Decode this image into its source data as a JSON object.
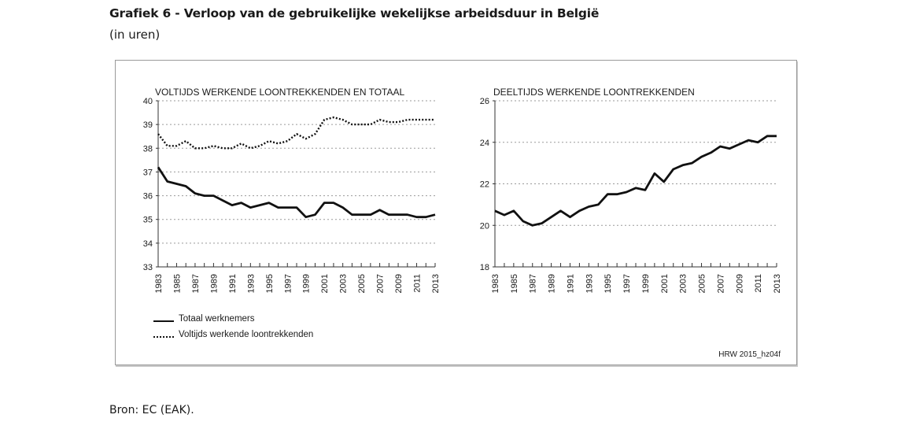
{
  "title": "Grafiek 6 - Verloop van de gebruikelijke wekelijkse arbeidsduur in België",
  "subtitle": "(in uren)",
  "source": "Bron: EC (EAK).",
  "code": "HRW 2015_hz04f",
  "colors": {
    "line": "#111111",
    "grid": "#9a9a9a",
    "frame": "#9a9a9a"
  },
  "chart_data": [
    {
      "type": "line",
      "title": "VOLTIJDS WERKENDE LOONTREKKENDEN EN TOTAAL",
      "x": [
        1983,
        1984,
        1985,
        1986,
        1987,
        1988,
        1989,
        1990,
        1991,
        1992,
        1993,
        1994,
        1995,
        1996,
        1997,
        1998,
        1999,
        2000,
        2001,
        2002,
        2003,
        2004,
        2005,
        2006,
        2007,
        2008,
        2009,
        2010,
        2011,
        2012,
        2013
      ],
      "x_tick_labels": [
        "1983",
        "1985",
        "1987",
        "1989",
        "1991",
        "1993",
        "1995",
        "1997",
        "1999",
        "2001",
        "2003",
        "2005",
        "2007",
        "2009",
        "2011",
        "2013"
      ],
      "ylim": [
        33,
        40
      ],
      "y_ticks": [
        33,
        34,
        35,
        36,
        37,
        38,
        39,
        40
      ],
      "grid": "dotted-horizontal",
      "legend_position": "bottom-left",
      "series": [
        {
          "name": "Totaal werknemers",
          "style": "solid",
          "values": [
            37.2,
            36.6,
            36.5,
            36.4,
            36.1,
            36.0,
            36.0,
            35.8,
            35.6,
            35.7,
            35.5,
            35.6,
            35.7,
            35.5,
            35.5,
            35.5,
            35.1,
            35.2,
            35.7,
            35.7,
            35.5,
            35.2,
            35.2,
            35.2,
            35.4,
            35.2,
            35.2,
            35.2,
            35.1,
            35.1,
            35.2
          ]
        },
        {
          "name": "Voltijds werkende loontrekkenden",
          "style": "dotted",
          "values": [
            38.6,
            38.1,
            38.1,
            38.3,
            38.0,
            38.0,
            38.1,
            38.0,
            38.0,
            38.2,
            38.0,
            38.1,
            38.3,
            38.2,
            38.3,
            38.6,
            38.4,
            38.6,
            39.2,
            39.3,
            39.2,
            39.0,
            39.0,
            39.0,
            39.2,
            39.1,
            39.1,
            39.2,
            39.2,
            39.2,
            39.2
          ]
        }
      ]
    },
    {
      "type": "line",
      "title": "DEELTIJDS WERKENDE LOONTREKKENDEN",
      "x": [
        1983,
        1984,
        1985,
        1986,
        1987,
        1988,
        1989,
        1990,
        1991,
        1992,
        1993,
        1994,
        1995,
        1996,
        1997,
        1998,
        1999,
        2000,
        2001,
        2002,
        2003,
        2004,
        2005,
        2006,
        2007,
        2008,
        2009,
        2010,
        2011,
        2012,
        2013
      ],
      "x_tick_labels": [
        "1983",
        "1985",
        "1987",
        "1989",
        "1991",
        "1993",
        "1995",
        "1997",
        "1999",
        "2001",
        "2003",
        "2005",
        "2007",
        "2009",
        "2011",
        "2013"
      ],
      "ylim": [
        18,
        26
      ],
      "y_ticks": [
        18,
        20,
        22,
        24,
        26
      ],
      "grid": "dotted-horizontal",
      "series": [
        {
          "style": "solid",
          "values": [
            20.7,
            20.5,
            20.7,
            20.2,
            20.0,
            20.1,
            20.4,
            20.7,
            20.4,
            20.7,
            20.9,
            21.0,
            21.5,
            21.5,
            21.6,
            21.8,
            21.7,
            22.5,
            22.1,
            22.7,
            22.9,
            23.0,
            23.3,
            23.5,
            23.8,
            23.7,
            23.9,
            24.1,
            24.0,
            24.3,
            24.3
          ]
        }
      ]
    }
  ]
}
